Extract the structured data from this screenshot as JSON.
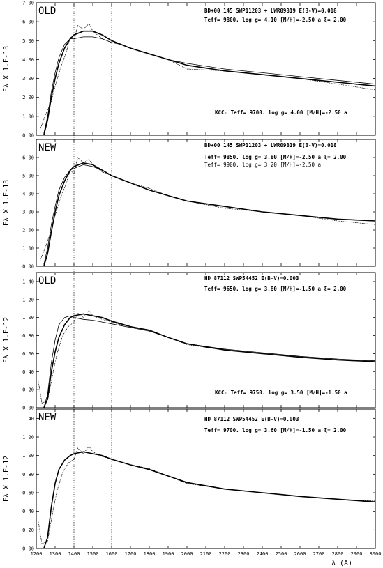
{
  "chart_data": [
    {
      "type": "line",
      "panel_tag": "OLD",
      "ylabel": "Fλ X   1.E-13",
      "xlim": [
        1200,
        3000
      ],
      "ylim": [
        0,
        7.0
      ],
      "yticks": [
        "0.00",
        "1.00",
        "2.00",
        "3.00",
        "4.00",
        "5.00",
        "6.00",
        "7.00"
      ],
      "annotations": [
        "BD+00 145 SWP11203 + LWR09819 E(B-V)=0.018",
        "Teff=  9800.  log g= 4.10 [M/H]=-2.50 a  ξ= 2.00",
        "KCC: Teff=  9700. log g= 4.00 [M/H]=-2.50 a"
      ],
      "series": [
        {
          "role": "observed",
          "x": [
            1220,
            1250,
            1280,
            1300,
            1330,
            1360,
            1380,
            1400,
            1420,
            1450,
            1480,
            1500,
            1550,
            1600,
            1650,
            1700,
            1800,
            1900,
            2000,
            2200,
            2400,
            2600,
            2800,
            3000
          ],
          "y": [
            0.3,
            1.1,
            1.8,
            2.6,
            3.6,
            4.4,
            5.2,
            5.0,
            5.8,
            5.6,
            5.9,
            5.5,
            5.1,
            4.9,
            4.8,
            4.6,
            4.3,
            4.0,
            3.5,
            3.4,
            3.2,
            3.0,
            2.7,
            2.4
          ]
        },
        {
          "role": "model_a",
          "x": [
            1240,
            1260,
            1280,
            1300,
            1320,
            1350,
            1380,
            1400,
            1450,
            1500,
            1550,
            1600,
            1650,
            1700,
            1800,
            1900,
            2000,
            2200,
            2400,
            2600,
            2800,
            3000
          ],
          "y": [
            0.0,
            0.8,
            2.0,
            3.0,
            3.8,
            4.6,
            5.1,
            5.3,
            5.5,
            5.5,
            5.3,
            5.0,
            4.8,
            4.6,
            4.3,
            4.0,
            3.7,
            3.4,
            3.2,
            3.0,
            2.8,
            2.6
          ]
        },
        {
          "role": "model_b",
          "x": [
            1240,
            1260,
            1280,
            1300,
            1320,
            1350,
            1380,
            1400,
            1450,
            1500,
            1550,
            1600,
            1650,
            1700,
            1800,
            1900,
            2000,
            2200,
            2400,
            2600,
            2800,
            3000
          ],
          "y": [
            0.1,
            1.0,
            2.3,
            3.3,
            4.1,
            4.8,
            5.1,
            5.1,
            5.2,
            5.2,
            5.1,
            4.9,
            4.8,
            4.6,
            4.3,
            4.0,
            3.8,
            3.5,
            3.3,
            3.1,
            2.9,
            2.7
          ]
        }
      ]
    },
    {
      "type": "line",
      "panel_tag": "NEW",
      "ylabel": "Fλ X   1.E-13",
      "xlim": [
        1200,
        3000
      ],
      "ylim": [
        0,
        7.0
      ],
      "yticks": [
        "0.00",
        "1.00",
        "2.00",
        "3.00",
        "4.00",
        "5.00",
        "6.00"
      ],
      "annotations": [
        "BD+00 145 SWP11203 + LWR09819 E(B-V)=0.018",
        "Teff=  9850.  log g= 3.80 [M/H]=-2.50 a  ξ= 2.00",
        "Teff=  9900.  log g= 3.20 [M/H]=-2.50 a"
      ],
      "series": [
        {
          "role": "observed",
          "x": [
            1220,
            1250,
            1280,
            1300,
            1330,
            1360,
            1380,
            1400,
            1420,
            1450,
            1480,
            1500,
            1550,
            1600,
            1650,
            1700,
            1800,
            1900,
            2000,
            2200,
            2400,
            2600,
            2800,
            3000
          ],
          "y": [
            0.3,
            1.1,
            2.0,
            2.8,
            3.8,
            4.6,
            5.3,
            5.1,
            6.0,
            5.7,
            5.9,
            5.6,
            5.2,
            5.0,
            4.8,
            4.6,
            4.3,
            3.9,
            3.6,
            3.2,
            3.0,
            2.8,
            2.5,
            2.3
          ]
        },
        {
          "role": "model_a",
          "x": [
            1240,
            1260,
            1280,
            1300,
            1320,
            1350,
            1380,
            1400,
            1450,
            1500,
            1550,
            1600,
            1650,
            1700,
            1800,
            1900,
            2000,
            2200,
            2400,
            2600,
            2800,
            3000
          ],
          "y": [
            0.0,
            0.7,
            1.9,
            3.0,
            3.9,
            4.7,
            5.3,
            5.5,
            5.7,
            5.6,
            5.3,
            5.0,
            4.8,
            4.6,
            4.2,
            3.9,
            3.6,
            3.3,
            3.0,
            2.8,
            2.6,
            2.5
          ]
        },
        {
          "role": "model_b",
          "x": [
            1240,
            1260,
            1280,
            1300,
            1320,
            1350,
            1380,
            1400,
            1450,
            1500,
            1550,
            1600,
            1650,
            1700,
            1800,
            1900,
            2000,
            2200,
            2400,
            2600,
            2800,
            3000
          ],
          "y": [
            0.1,
            1.0,
            2.3,
            3.3,
            4.2,
            4.9,
            5.3,
            5.4,
            5.6,
            5.5,
            5.3,
            5.0,
            4.8,
            4.6,
            4.2,
            3.9,
            3.6,
            3.3,
            3.0,
            2.8,
            2.6,
            2.5
          ]
        }
      ]
    },
    {
      "type": "line",
      "panel_tag": "OLD",
      "ylabel": "Fλ X   1.E-12",
      "xlim": [
        1200,
        3000
      ],
      "ylim": [
        0,
        1.5
      ],
      "yticks": [
        "0.00",
        "0.20",
        "0.40",
        "0.60",
        "0.80",
        "1.00",
        "1.20",
        "1.40"
      ],
      "annotations": [
        "HD 87112   SWP54452          E(B-V)=0.003",
        "Teff=  9650.  log g= 3.80 [M/H]=-1.50 a  ξ= 2.00",
        "KCC: Teff=  9750. log g= 3.50 [M/H]=-1.50 a"
      ],
      "series": [
        {
          "role": "observed",
          "x": [
            1210,
            1230,
            1260,
            1290,
            1310,
            1340,
            1370,
            1400,
            1420,
            1450,
            1480,
            1500,
            1550,
            1600,
            1650,
            1700,
            1800,
            1900,
            2000,
            2200,
            2400,
            2600,
            2800,
            3000
          ],
          "y": [
            0.3,
            0.05,
            0.08,
            0.4,
            0.6,
            0.8,
            0.9,
            0.95,
            1.05,
            1.0,
            1.08,
            1.02,
            0.98,
            0.95,
            0.92,
            0.9,
            0.86,
            0.78,
            0.7,
            0.64,
            0.6,
            0.56,
            0.53,
            0.51
          ]
        },
        {
          "role": "model_a",
          "x": [
            1240,
            1260,
            1280,
            1300,
            1320,
            1350,
            1380,
            1400,
            1450,
            1500,
            1550,
            1600,
            1650,
            1700,
            1800,
            1900,
            2000,
            2200,
            2400,
            2600,
            2800,
            3000
          ],
          "y": [
            0.0,
            0.1,
            0.4,
            0.62,
            0.78,
            0.92,
            1.0,
            1.02,
            1.04,
            1.02,
            1.0,
            0.96,
            0.93,
            0.9,
            0.86,
            0.78,
            0.71,
            0.64,
            0.6,
            0.56,
            0.53,
            0.51
          ]
        },
        {
          "role": "model_b",
          "x": [
            1240,
            1260,
            1280,
            1300,
            1320,
            1350,
            1380,
            1400,
            1450,
            1500,
            1550,
            1600,
            1650,
            1700,
            1800,
            1900,
            2000,
            2200,
            2400,
            2600,
            2800,
            3000
          ],
          "y": [
            0.0,
            0.15,
            0.5,
            0.75,
            0.92,
            1.0,
            1.02,
            1.0,
            0.98,
            0.97,
            0.95,
            0.93,
            0.91,
            0.89,
            0.85,
            0.78,
            0.71,
            0.65,
            0.61,
            0.57,
            0.54,
            0.52
          ]
        }
      ]
    },
    {
      "type": "line",
      "panel_tag": "NEW",
      "ylabel": "Fλ X   1.E-12",
      "xlim": [
        1200,
        3000
      ],
      "ylim": [
        0,
        1.5
      ],
      "yticks": [
        "0.00",
        "0.20",
        "0.40",
        "0.60",
        "0.80",
        "1.00",
        "1.20",
        "1.40"
      ],
      "annotations": [
        "HD 87112   SWP54452          E(B-V)=0.003",
        "Teff=  9700.  log g= 3.60 [M/H]=-1.50 a  ξ= 2.00"
      ],
      "series": [
        {
          "role": "observed",
          "x": [
            1210,
            1230,
            1260,
            1290,
            1310,
            1340,
            1370,
            1400,
            1420,
            1450,
            1480,
            1500,
            1550,
            1600,
            1650,
            1700,
            1800,
            1900,
            2000,
            2200,
            2400,
            2600,
            2800,
            3000
          ],
          "y": [
            0.3,
            0.05,
            0.08,
            0.42,
            0.62,
            0.82,
            0.92,
            0.96,
            1.08,
            1.02,
            1.1,
            1.04,
            0.99,
            0.96,
            0.93,
            0.9,
            0.86,
            0.78,
            0.7,
            0.64,
            0.6,
            0.56,
            0.53,
            0.51
          ]
        },
        {
          "role": "model_a",
          "x": [
            1240,
            1260,
            1280,
            1300,
            1320,
            1350,
            1380,
            1400,
            1450,
            1500,
            1550,
            1600,
            1650,
            1700,
            1800,
            1900,
            2000,
            2200,
            2400,
            2600,
            2800,
            3000
          ],
          "y": [
            0.0,
            0.12,
            0.45,
            0.7,
            0.85,
            0.95,
            1.0,
            1.02,
            1.04,
            1.02,
            1.0,
            0.96,
            0.93,
            0.9,
            0.85,
            0.78,
            0.71,
            0.64,
            0.6,
            0.56,
            0.53,
            0.5
          ]
        }
      ]
    }
  ],
  "shared_x_axis": {
    "ticks": [
      "1200",
      "1300",
      "1400",
      "1500",
      "1600",
      "1700",
      "1800",
      "1900",
      "2000",
      "2100",
      "2200",
      "2300",
      "2400",
      "2500",
      "2600",
      "2700",
      "2800",
      "2900",
      "3000"
    ],
    "label": "λ (A)",
    "reference_lines": [
      1400,
      1600
    ]
  }
}
